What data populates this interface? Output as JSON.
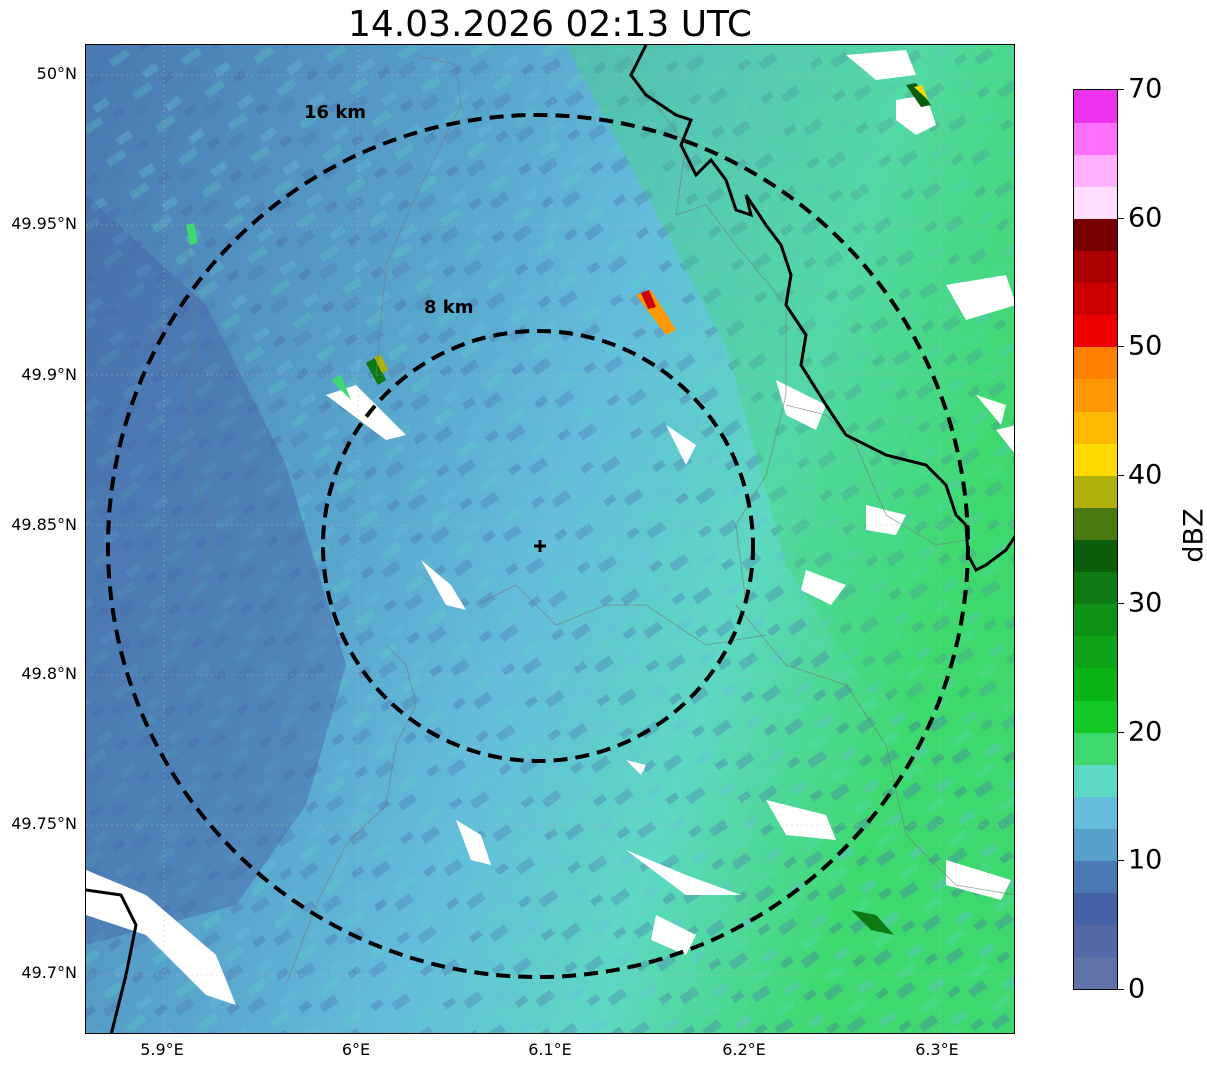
{
  "title": "14.03.2026 02:13 UTC",
  "map": {
    "lat_labels": [
      "50°N",
      "49.95°N",
      "49.9°N",
      "49.85°N",
      "49.8°N",
      "49.75°N",
      "49.7°N"
    ],
    "lon_labels": [
      "5.9°E",
      "6°E",
      "6.1°E",
      "6.2°E",
      "6.3°E"
    ],
    "range_rings": [
      {
        "label": "8 km",
        "radius_km": 8
      },
      {
        "label": "16 km",
        "radius_km": 16
      }
    ],
    "radar_site": {
      "lat": 49.84,
      "lon": 6.1
    }
  },
  "colorbar": {
    "label": "dBZ",
    "ticks": [
      "0",
      "10",
      "20",
      "30",
      "40",
      "50",
      "60",
      "70"
    ],
    "min": 0,
    "max": 70,
    "colors": [
      "#6072a8",
      "#5468a5",
      "#4661a6",
      "#4a78b2",
      "#56a0c9",
      "#63bddb",
      "#5dd8c2",
      "#3ed96e",
      "#12c924",
      "#0ab513",
      "#0ea319",
      "#0d9117",
      "#0d7a13",
      "#0a5e0c",
      "#4a7a10",
      "#b0b00a",
      "#ffd800",
      "#ffb800",
      "#ff9800",
      "#ff8000",
      "#ee0000",
      "#cc0000",
      "#aa0000",
      "#7a0000",
      "#ffddff",
      "#ffb0ff",
      "#ff70ff",
      "#ee33ee"
    ]
  }
}
